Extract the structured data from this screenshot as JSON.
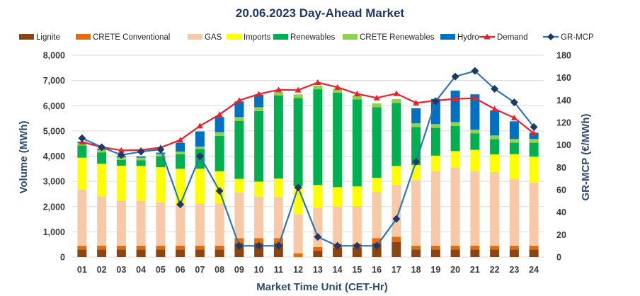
{
  "chart_data": {
    "type": "bar",
    "subtype": "stacked-bar-with-lines",
    "title": "20.06.2023  Day-Ahead Market",
    "xlabel": "Market Time Unit (CET-Hr)",
    "ylabel": "Volume (MWh)",
    "y2label": "GR-MCP (€/MWh)",
    "ylim": [
      0,
      8000
    ],
    "y2lim": [
      0,
      180
    ],
    "yticks": [
      "0",
      "1,000",
      "2,000",
      "3,000",
      "4,000",
      "5,000",
      "6,000",
      "7,000",
      "8,000"
    ],
    "y2ticks": [
      "0",
      "20",
      "40",
      "60",
      "80",
      "100",
      "120",
      "140",
      "160",
      "180"
    ],
    "grid": true,
    "legend_position": "top",
    "categories": [
      "01",
      "02",
      "03",
      "04",
      "05",
      "06",
      "07",
      "08",
      "09",
      "10",
      "11",
      "12",
      "13",
      "14",
      "15",
      "16",
      "17",
      "18",
      "19",
      "20",
      "21",
      "22",
      "23",
      "24"
    ],
    "series": [
      {
        "name": "Lignite",
        "kind": "bar",
        "color": "#8b4513",
        "values": [
          300,
          300,
          300,
          300,
          300,
          300,
          300,
          300,
          550,
          550,
          550,
          0,
          250,
          380,
          380,
          550,
          600,
          300,
          300,
          300,
          300,
          300,
          300,
          300
        ]
      },
      {
        "name": "CRETE Conventional",
        "kind": "bar",
        "color": "#e46c0a",
        "values": [
          150,
          150,
          150,
          150,
          150,
          150,
          150,
          150,
          200,
          200,
          200,
          150,
          150,
          150,
          150,
          200,
          200,
          150,
          150,
          150,
          150,
          150,
          150,
          150
        ]
      },
      {
        "name": "GAS",
        "kind": "bar",
        "color": "#f8c9a6",
        "values": [
          2220,
          1950,
          1770,
          1780,
          1730,
          1650,
          1670,
          1680,
          1800,
          1640,
          1630,
          1550,
          1550,
          1480,
          1490,
          1830,
          2060,
          2600,
          2950,
          3100,
          2950,
          2920,
          2650,
          2500
        ]
      },
      {
        "name": "Imports",
        "kind": "bar",
        "color": "#ffff00",
        "values": [
          1270,
          1300,
          1400,
          1380,
          1380,
          1400,
          1380,
          1270,
          550,
          600,
          730,
          1100,
          910,
          760,
          780,
          560,
          750,
          600,
          620,
          650,
          850,
          700,
          980,
          1030
        ]
      },
      {
        "name": "Renewables",
        "kind": "bar",
        "color": "#00b050",
        "values": [
          480,
          450,
          230,
          230,
          430,
          580,
          780,
          1400,
          2300,
          2800,
          3300,
          3500,
          3790,
          3750,
          3450,
          2800,
          2500,
          1500,
          1100,
          1000,
          650,
          600,
          450,
          550
        ]
      },
      {
        "name": "CRETE Renewables",
        "kind": "bar",
        "color": "#92d050",
        "values": [
          100,
          100,
          100,
          100,
          100,
          100,
          100,
          150,
          150,
          150,
          150,
          150,
          150,
          150,
          150,
          150,
          150,
          150,
          150,
          150,
          150,
          150,
          150,
          150
        ]
      },
      {
        "name": "Hydro",
        "kind": "bar",
        "color": "#0070c0",
        "values": [
          50,
          50,
          50,
          50,
          50,
          350,
          600,
          600,
          620,
          500,
          0,
          0,
          0,
          0,
          0,
          0,
          0,
          600,
          1000,
          1250,
          1400,
          1000,
          700,
          250
        ]
      },
      {
        "name": "Demand",
        "kind": "line",
        "axis": "left",
        "color": "#e8212b",
        "values": [
          4560,
          4360,
          4230,
          4240,
          4340,
          4640,
          5200,
          5650,
          6210,
          6460,
          6630,
          6620,
          6920,
          6730,
          6470,
          6310,
          6480,
          6110,
          6200,
          6270,
          6300,
          5870,
          5520,
          4900
        ]
      },
      {
        "name": "GR-MCP",
        "kind": "line",
        "axis": "right",
        "color": "#2e75b6",
        "marker_color": "#1f3864",
        "values": [
          106,
          98,
          91,
          94,
          96,
          47,
          90,
          59,
          10,
          10,
          10,
          62,
          18,
          10,
          10,
          10,
          34,
          85,
          139,
          161,
          166,
          150,
          138,
          116
        ]
      }
    ]
  }
}
